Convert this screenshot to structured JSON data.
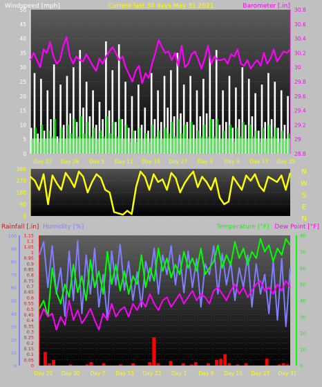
{
  "colors": {
    "background": "#c0c0c0",
    "plot_top": "#5a5a5a",
    "plot_bottom": "#000000",
    "windspeed_label": "#ffffff",
    "title": "#ffff00",
    "barometer": "#ff00ff",
    "wind_gust": "#ffffff",
    "wind_avg": "#00dd00",
    "wind_dir": "#ffff00",
    "rainfall": "#ff0000",
    "humidity": "#7f7fff",
    "temperature": "#00ff00",
    "dewpoint": "#ff00ff",
    "date_axis": "#ffff00"
  },
  "chart_data": [
    {
      "type": "line",
      "title": "Current last 30 days May 31 2021",
      "ylabel_left": "Windspeed [mph]",
      "ylabel_right": "Barometer [.in]",
      "y_left_ticks": [
        "0",
        "5",
        "10",
        "15",
        "20",
        "25",
        "30",
        "35",
        "40",
        "45",
        "50"
      ],
      "y_left_range": [
        0,
        50
      ],
      "y_right_ticks": [
        "28.8",
        "29",
        "29.2",
        "29.4",
        "29.6",
        "29.8",
        "30",
        "30.2",
        "30.4",
        "30.6",
        "30.8"
      ],
      "y_right_range": [
        28.8,
        30.8
      ],
      "x_ticks": [
        "Day 22",
        "Day 26",
        "Day 5",
        "Day 11",
        "Day 19",
        "Day 27",
        "Day 3",
        "Day 9",
        "Day 17",
        "Day 25"
      ],
      "series": [
        {
          "axis": "right",
          "values": [
            30.1,
            30.2,
            30.1,
            30.0,
            30.25,
            30.2,
            30.35,
            30.15,
            30.05,
            30.1,
            30.3,
            30.42,
            30.15,
            30.05,
            30.15,
            30.1,
            30.08,
            30.18,
            30.1,
            30.02,
            29.95,
            30.12,
            30.05,
            30.15,
            30.22,
            30.28,
            30.2,
            30.1,
            30.15,
            30.0,
            29.9,
            29.8,
            29.95,
            30.02,
            29.78,
            29.92,
            29.85,
            30.05,
            30.2,
            30.38,
            30.28,
            30.2,
            30.22,
            30.1,
            30.2,
            30.02,
            30.3,
            30.0,
            30.05,
            30.18,
            30.22,
            30.12,
            29.98,
            30.12,
            30.3,
            30.05,
            30.15,
            30.1,
            30.1,
            30.12,
            30.05,
            30.18,
            30.15,
            30.25,
            30.05,
            30.02,
            30.1,
            29.98,
            30.05,
            30.1,
            30.02,
            30.2,
            30.05,
            30.12,
            30.25,
            30.08,
            30.15,
            30.22,
            30.2,
            30.25
          ]
        },
        {
          "axis": "left",
          "values": [
            9,
            28,
            7,
            26,
            8,
            22,
            12,
            31,
            6,
            24,
            10,
            27,
            14,
            30,
            11,
            36,
            16,
            25,
            13,
            22,
            10,
            18,
            12,
            39,
            15,
            29,
            11,
            38,
            12,
            25,
            9,
            20,
            8,
            24,
            10,
            16,
            8,
            28,
            12,
            22,
            11,
            27,
            16,
            29,
            13,
            35,
            14,
            24,
            11,
            27,
            10,
            22,
            13,
            26,
            14,
            34,
            12,
            36,
            10,
            22,
            11,
            27,
            9,
            23,
            12,
            30,
            10,
            26,
            13,
            21,
            8,
            24,
            11,
            28,
            12,
            25,
            9,
            22,
            10,
            20
          ]
        },
        {
          "axis": "left",
          "values": [
            5,
            9,
            4,
            10,
            5,
            8,
            6,
            12,
            4,
            9,
            5,
            10,
            7,
            12,
            6,
            13,
            7,
            11,
            6,
            9,
            5,
            8,
            6,
            13,
            7,
            11,
            6,
            12,
            5,
            10,
            4,
            8,
            4,
            9,
            5,
            7,
            4,
            10,
            6,
            8,
            5,
            9,
            7,
            11,
            6,
            12,
            7,
            10,
            5,
            11,
            5,
            8,
            6,
            10,
            6,
            12,
            6,
            12,
            5,
            8,
            5,
            10,
            4,
            9,
            6,
            11,
            5,
            10,
            6,
            8,
            4,
            9,
            5,
            10,
            6,
            9,
            4,
            8,
            5,
            7
          ]
        }
      ]
    },
    {
      "type": "line",
      "y_left_ticks": [
        "0",
        "90",
        "180",
        "270",
        "360"
      ],
      "y_left_range": [
        0,
        360
      ],
      "y_right_ticks": [
        "N",
        "W",
        "S",
        "E",
        "N"
      ],
      "series": [
        {
          "values": [
            300,
            270,
            200,
            320,
            90,
            310,
            250,
            200,
            330,
            280,
            220,
            340,
            300,
            180,
            260,
            320,
            290,
            200,
            180,
            30,
            20,
            10,
            40,
            15,
            220,
            340,
            300,
            200,
            320,
            260,
            280,
            200,
            330,
            290,
            180,
            250,
            300,
            340,
            220,
            300,
            260,
            200,
            290,
            140,
            90,
            110,
            300,
            250,
            200,
            310,
            270,
            320,
            230,
            190,
            300,
            280,
            260,
            310,
            200,
            330
          ]
        }
      ]
    },
    {
      "type": "line",
      "ylabel_left_1": "Rainfall [.in]",
      "ylabel_left_2": "Humidity [%]",
      "ylabel_right_1": "Temperature [°F]",
      "ylabel_right_2": "Dew Point [°F]",
      "y_rain_ticks": [
        "0",
        "0.05",
        "0.1",
        "0.15",
        "0.2",
        "0.25",
        "0.3",
        "0.35",
        "0.4",
        "0.45",
        "0.5",
        "0.55",
        "0.6",
        "0.65",
        "0.7",
        "0.75",
        "0.8",
        "0.85",
        "0.9",
        "0.95",
        "1",
        "1.05",
        "1.1",
        "1.15"
      ],
      "y_rain_range": [
        0,
        1.15
      ],
      "y_hum_ticks": [
        "0",
        "10",
        "20",
        "30",
        "40",
        "50",
        "60",
        "70",
        "80",
        "90",
        "100"
      ],
      "y_hum_range": [
        0,
        100
      ],
      "y_temp_ticks": [
        "0",
        "10",
        "20",
        "30",
        "40",
        "50",
        "60",
        "70",
        "80"
      ],
      "y_temp_range": [
        0,
        80
      ],
      "x_ticks": [
        "Day 22",
        "Day 30",
        "Day 7",
        "Day 15",
        "Day 23",
        "Day 1",
        "Day 8",
        "Day 15",
        "Day 23",
        "Day 31"
      ],
      "series": [
        {
          "name": "Humidity [%]",
          "values": [
            85,
            95,
            60,
            92,
            55,
            75,
            38,
            88,
            50,
            96,
            40,
            85,
            55,
            90,
            45,
            70,
            35,
            88,
            62,
            93,
            58,
            80,
            50,
            72,
            45,
            80,
            65,
            90,
            55,
            85,
            70,
            92,
            62,
            85,
            56,
            88,
            60,
            82,
            45,
            78,
            70,
            92,
            55,
            86,
            62,
            80,
            50,
            75,
            60,
            85,
            45,
            78,
            55,
            70,
            40,
            80,
            35,
            82,
            30,
            75
          ]
        },
        {
          "name": "Temperature [°F]",
          "values": [
            35,
            40,
            30,
            60,
            45,
            38,
            50,
            42,
            62,
            45,
            55,
            40,
            65,
            48,
            58,
            44,
            70,
            50,
            62,
            46,
            58,
            44,
            55,
            50,
            68,
            48,
            60,
            52,
            72,
            58,
            66,
            54,
            62,
            56,
            70,
            60,
            66,
            58,
            72,
            56,
            60,
            64,
            74,
            60,
            68,
            62,
            76,
            66,
            72,
            62,
            70,
            66,
            78,
            70,
            74,
            64,
            72,
            68,
            78,
            74
          ]
        },
        {
          "name": "Dew Point [°F]",
          "values": [
            28,
            35,
            30,
            32,
            22,
            30,
            25,
            40,
            28,
            34,
            26,
            30,
            35,
            28,
            22,
            32,
            28,
            38,
            30,
            34,
            36,
            30,
            38,
            34,
            40,
            36,
            44,
            38,
            34,
            40,
            42,
            36,
            40,
            44,
            38,
            42,
            46,
            40,
            44,
            42,
            38,
            46,
            48,
            44,
            40,
            46,
            50,
            44,
            48,
            42,
            46,
            50,
            52,
            46,
            48,
            44,
            50,
            46,
            52,
            48
          ]
        },
        {
          "name": "Rainfall [.in]",
          "values": [
            0,
            0.12,
            0.02,
            0.05,
            0,
            0,
            0,
            0.01,
            0,
            0,
            0,
            0.01,
            0.03,
            0,
            0,
            0.02,
            0,
            0,
            0,
            0.01,
            0,
            0,
            0.02,
            0,
            0,
            0,
            0.03,
            0.25,
            0.02,
            0,
            0,
            0.04,
            0,
            0,
            0.02,
            0,
            0.01,
            0.03,
            0,
            0,
            0.02,
            0,
            0.05,
            0.06,
            0.1,
            0.02,
            0,
            0.01,
            0,
            0.02,
            0,
            0,
            0,
            0,
            0.06,
            0,
            0,
            0.01,
            0.02,
            0.01
          ]
        }
      ]
    }
  ]
}
